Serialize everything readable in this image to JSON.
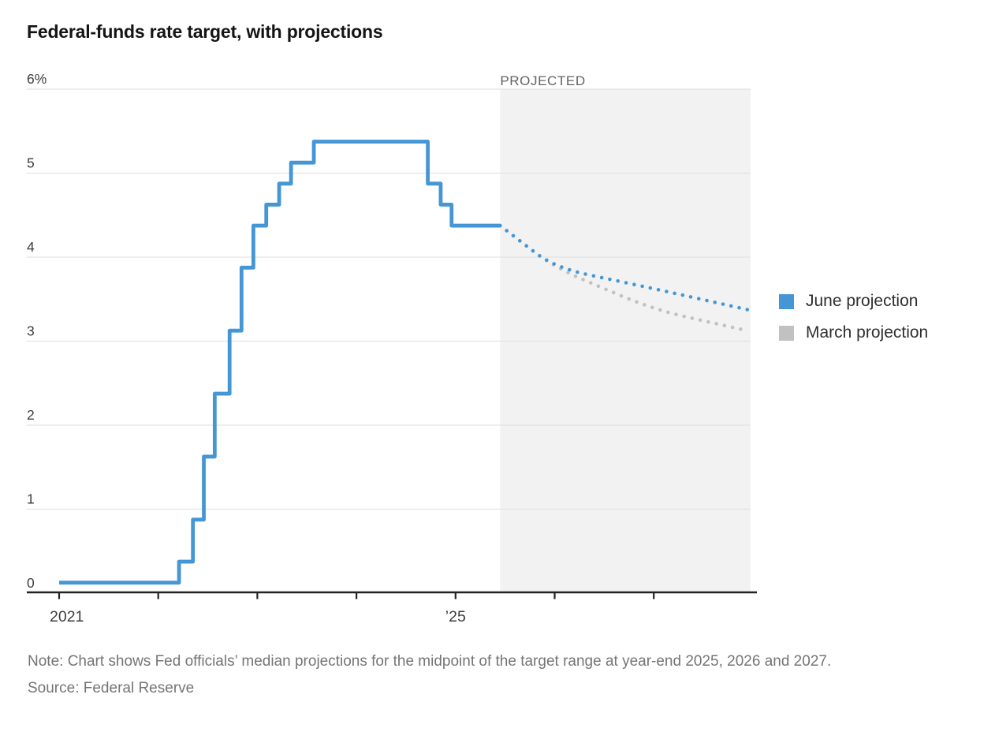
{
  "chart_data": {
    "type": "line",
    "title": "Federal-funds rate target, with projections",
    "projected_label": "PROJECTED",
    "projected_start": 2025.45,
    "y_axis": {
      "range": [
        0,
        6
      ],
      "unit": "%",
      "ticks": [
        {
          "value": 6,
          "label": "6%"
        },
        {
          "value": 5,
          "label": "5"
        },
        {
          "value": 4,
          "label": "4"
        },
        {
          "value": 3,
          "label": "3"
        },
        {
          "value": 2,
          "label": "2"
        },
        {
          "value": 1,
          "label": "1"
        },
        {
          "value": 0,
          "label": "0"
        }
      ]
    },
    "x_axis": {
      "range": [
        2020.67,
        2028.05
      ],
      "tick_years": [
        2021,
        2022,
        2023,
        2024,
        2025,
        2026,
        2027
      ],
      "labels": [
        {
          "year": 2021,
          "text": "2021"
        },
        {
          "year": 2025,
          "text": "’25"
        }
      ]
    },
    "series": [
      {
        "name": "actual-fed-funds-target-midpoint",
        "style": "step-solid",
        "color": "#4596d5",
        "points": [
          [
            2021.0,
            0.125
          ],
          [
            2022.21,
            0.375
          ],
          [
            2022.35,
            0.875
          ],
          [
            2022.46,
            1.625
          ],
          [
            2022.57,
            2.375
          ],
          [
            2022.72,
            3.125
          ],
          [
            2022.84,
            3.875
          ],
          [
            2022.96,
            4.375
          ],
          [
            2023.09,
            4.625
          ],
          [
            2023.22,
            4.875
          ],
          [
            2023.34,
            5.125
          ],
          [
            2023.57,
            5.375
          ],
          [
            2024.72,
            4.875
          ],
          [
            2024.85,
            4.625
          ],
          [
            2024.96,
            4.375
          ],
          [
            2025.45,
            4.375
          ]
        ]
      },
      {
        "name": "June projection",
        "style": "dotted",
        "color": "#4596d5",
        "year_end_medians": {
          "2025": 3.875,
          "2026": 3.625,
          "2027": 3.375
        },
        "points": [
          [
            2025.45,
            4.375
          ],
          [
            2026.0,
            3.875
          ],
          [
            2027.0,
            3.625
          ],
          [
            2028.0,
            3.375
          ]
        ]
      },
      {
        "name": "March projection",
        "style": "dotted",
        "color": "#c1c1c1",
        "year_end_medians": {
          "2025": 3.875,
          "2026": 3.375,
          "2027": 3.125
        },
        "points": [
          [
            2025.45,
            4.375
          ],
          [
            2026.0,
            3.875
          ],
          [
            2027.0,
            3.375
          ],
          [
            2028.0,
            3.125
          ]
        ]
      }
    ],
    "legend": [
      {
        "label": "June projection",
        "color": "#4596d5"
      },
      {
        "label": "March projection",
        "color": "#c1c1c1"
      }
    ],
    "colors": {
      "shaded_region": "#f2f2f2",
      "gridline": "#e3e3e3",
      "axis": "#222222",
      "tick_label": "#3c3c3c",
      "projected_label": "#636363"
    },
    "note": "Note: Chart shows Fed officials’ median projections for the midpoint of the target range at year-end 2025, 2026 and 2027.",
    "source": "Source: Federal Reserve"
  }
}
